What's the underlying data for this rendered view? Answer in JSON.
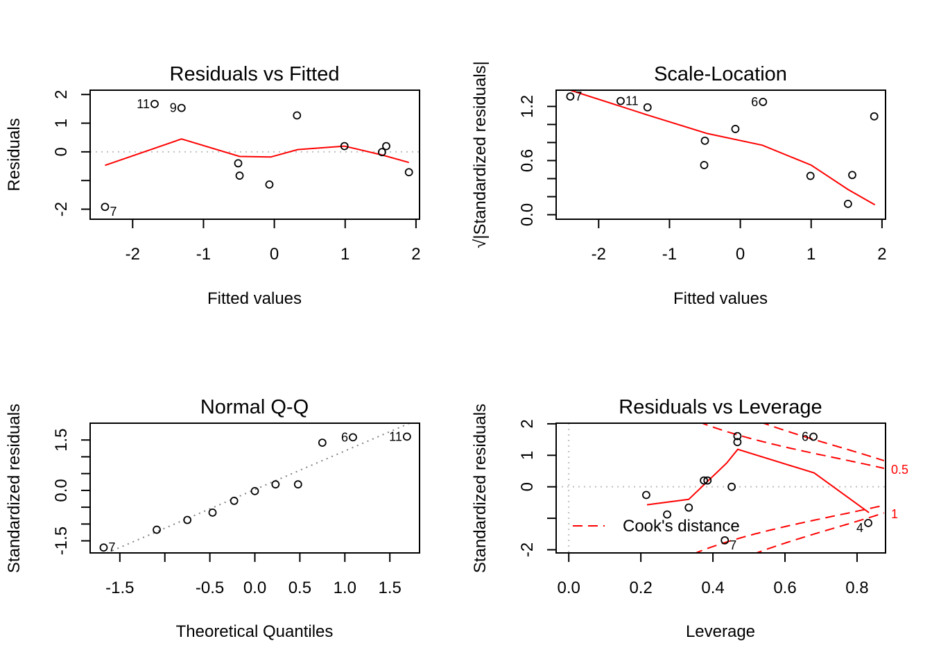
{
  "chart_data": [
    {
      "type": "scatter",
      "title": "Residuals vs Fitted",
      "xlabel": "Fitted values",
      "ylabel": "Residuals",
      "xlim": [
        -2.6,
        2.05
      ],
      "ylim": [
        -2.35,
        2.15
      ],
      "xticks": [
        -2,
        -1,
        0,
        1,
        2
      ],
      "xtick_labels": [
        "-2",
        "-1",
        "0",
        "1",
        "2"
      ],
      "yticks": [
        -2,
        -1,
        0,
        1,
        2
      ],
      "ytick_labels": [
        "-2",
        "",
        "0",
        "1",
        "2"
      ],
      "reference_line": {
        "y": 0,
        "style": "dotted",
        "color": "#BEBEBE"
      },
      "points": [
        {
          "x": -2.39,
          "y": -1.92,
          "label": "7",
          "label_pos": "right-below"
        },
        {
          "x": -1.69,
          "y": 1.67,
          "label": "11",
          "label_pos": "left"
        },
        {
          "x": -1.31,
          "y": 1.53,
          "label": "9",
          "label_pos": "left"
        },
        {
          "x": 0.32,
          "y": 1.27
        },
        {
          "x": -0.51,
          "y": -0.4
        },
        {
          "x": -0.49,
          "y": -0.83
        },
        {
          "x": -0.07,
          "y": -1.14
        },
        {
          "x": 0.99,
          "y": 0.2
        },
        {
          "x": 1.52,
          "y": -0.01
        },
        {
          "x": 1.58,
          "y": 0.2
        },
        {
          "x": 1.9,
          "y": -0.71
        }
      ],
      "smoother": {
        "color": "#FF0000",
        "x": [
          -2.39,
          -1.31,
          -0.49,
          -0.05,
          0.33,
          0.99,
          1.52,
          1.9
        ],
        "y": [
          -0.47,
          0.45,
          -0.16,
          -0.18,
          0.08,
          0.2,
          -0.11,
          -0.37
        ]
      }
    },
    {
      "type": "scatter",
      "title": "Scale-Location",
      "xlabel": "Fitted values",
      "ylabel": "√|Standardized residuals|",
      "xlim": [
        -2.6,
        2.05
      ],
      "ylim": [
        -0.05,
        1.38
      ],
      "xticks": [
        -2,
        -1,
        0,
        1,
        2
      ],
      "xtick_labels": [
        "-2",
        "-1",
        "0",
        "1",
        "2"
      ],
      "yticks": [
        0.0,
        0.2,
        0.4,
        0.6,
        0.8,
        1.0,
        1.2
      ],
      "ytick_labels": [
        "0.0",
        "",
        "",
        "0.6",
        "",
        "",
        "1.2"
      ],
      "points": [
        {
          "x": -2.4,
          "y": 1.31,
          "label": "7",
          "label_pos": "right"
        },
        {
          "x": -1.69,
          "y": 1.26,
          "label": "11",
          "label_pos": "right"
        },
        {
          "x": -1.31,
          "y": 1.19
        },
        {
          "x": 0.32,
          "y": 1.25,
          "label": "6",
          "label_pos": "left"
        },
        {
          "x": -0.07,
          "y": 0.95
        },
        {
          "x": -0.5,
          "y": 0.82
        },
        {
          "x": -0.51,
          "y": 0.55
        },
        {
          "x": 0.99,
          "y": 0.43
        },
        {
          "x": 1.58,
          "y": 0.44
        },
        {
          "x": 1.52,
          "y": 0.12
        },
        {
          "x": 1.89,
          "y": 1.09
        }
      ],
      "smoother": {
        "color": "#FF0000",
        "x": [
          -2.4,
          -1.29,
          -0.47,
          0.31,
          1.0,
          1.52,
          1.9
        ],
        "y": [
          1.39,
          1.1,
          0.9,
          0.77,
          0.55,
          0.28,
          0.11
        ]
      }
    },
    {
      "type": "scatter",
      "title": "Normal Q-Q",
      "xlabel": "Theoretical Quantiles",
      "ylabel": "Standardized residuals",
      "xlim": [
        -1.83,
        1.83
      ],
      "ylim": [
        -1.86,
        2.0
      ],
      "xticks": [
        -1.5,
        -1.0,
        -0.5,
        0.0,
        0.5,
        1.0,
        1.5
      ],
      "xtick_labels": [
        "-1.5",
        "",
        "-0.5",
        "0.0",
        "0.5",
        "1.0",
        "1.5"
      ],
      "yticks": [
        -1.5,
        -1.0,
        -0.5,
        0.0,
        0.5,
        1.0,
        1.5
      ],
      "ytick_labels": [
        "-1.5",
        "",
        "",
        "0.0",
        "",
        "",
        "1.5"
      ],
      "reference_line": {
        "intercept": 0.025,
        "slope": 1.149,
        "style": "dotted",
        "color": "#808080"
      },
      "points": [
        {
          "x": -1.68,
          "y": -1.7,
          "label": "7",
          "label_pos": "right"
        },
        {
          "x": -1.09,
          "y": -1.17
        },
        {
          "x": -0.75,
          "y": -0.88
        },
        {
          "x": -0.47,
          "y": -0.66
        },
        {
          "x": -0.23,
          "y": -0.31
        },
        {
          "x": 0.0,
          "y": -0.02
        },
        {
          "x": 0.23,
          "y": 0.18
        },
        {
          "x": 0.48,
          "y": 0.18
        },
        {
          "x": 0.75,
          "y": 1.42
        },
        {
          "x": 1.09,
          "y": 1.58,
          "label": "6",
          "label_pos": "left"
        },
        {
          "x": 1.69,
          "y": 1.6,
          "label": "11",
          "label_pos": "left"
        }
      ]
    },
    {
      "type": "scatter",
      "title": "Residuals vs Leverage",
      "xlabel": "Leverage",
      "ylabel": "Standardized residuals",
      "xlim": [
        -0.035,
        0.879
      ],
      "ylim": [
        -2.1,
        2.02
      ],
      "xticks": [
        0.0,
        0.2,
        0.4,
        0.6,
        0.8
      ],
      "xtick_labels": [
        "0.0",
        "0.2",
        "0.4",
        "0.6",
        "0.8"
      ],
      "yticks": [
        -2,
        -1,
        0,
        1,
        2
      ],
      "ytick_labels": [
        "-2",
        "",
        "0",
        "1",
        "2"
      ],
      "reference_lines": [
        {
          "x": 0,
          "style": "dotted",
          "color": "#BEBEBE"
        },
        {
          "y": 0,
          "style": "dotted",
          "color": "#BEBEBE"
        }
      ],
      "points": [
        {
          "x": 0.215,
          "y": -0.26
        },
        {
          "x": 0.273,
          "y": -0.88
        },
        {
          "x": 0.333,
          "y": -0.66
        },
        {
          "x": 0.375,
          "y": 0.2
        },
        {
          "x": 0.385,
          "y": 0.2
        },
        {
          "x": 0.452,
          "y": 0.0
        },
        {
          "x": 0.468,
          "y": 1.61
        },
        {
          "x": 0.468,
          "y": 1.42
        },
        {
          "x": 0.679,
          "y": 1.59,
          "label": "6",
          "label_pos": "left"
        },
        {
          "x": 0.831,
          "y": -1.15,
          "label": "4",
          "label_pos": "left-below"
        },
        {
          "x": 0.433,
          "y": -1.7,
          "label": "7",
          "label_pos": "right-below"
        }
      ],
      "smoother": {
        "color": "#FF0000",
        "x": [
          0.217,
          0.333,
          0.438,
          0.469,
          0.681,
          0.833
        ],
        "y": [
          -0.57,
          -0.4,
          0.75,
          1.19,
          0.44,
          -0.82
        ]
      },
      "cooks_distance": {
        "levels": [
          0.5,
          1
        ],
        "level_labels": [
          "0.5",
          "1"
        ],
        "color": "#FF0000",
        "style": "dashed"
      },
      "legend": {
        "label": "Cook's distance",
        "position": "bottom-left"
      }
    }
  ]
}
